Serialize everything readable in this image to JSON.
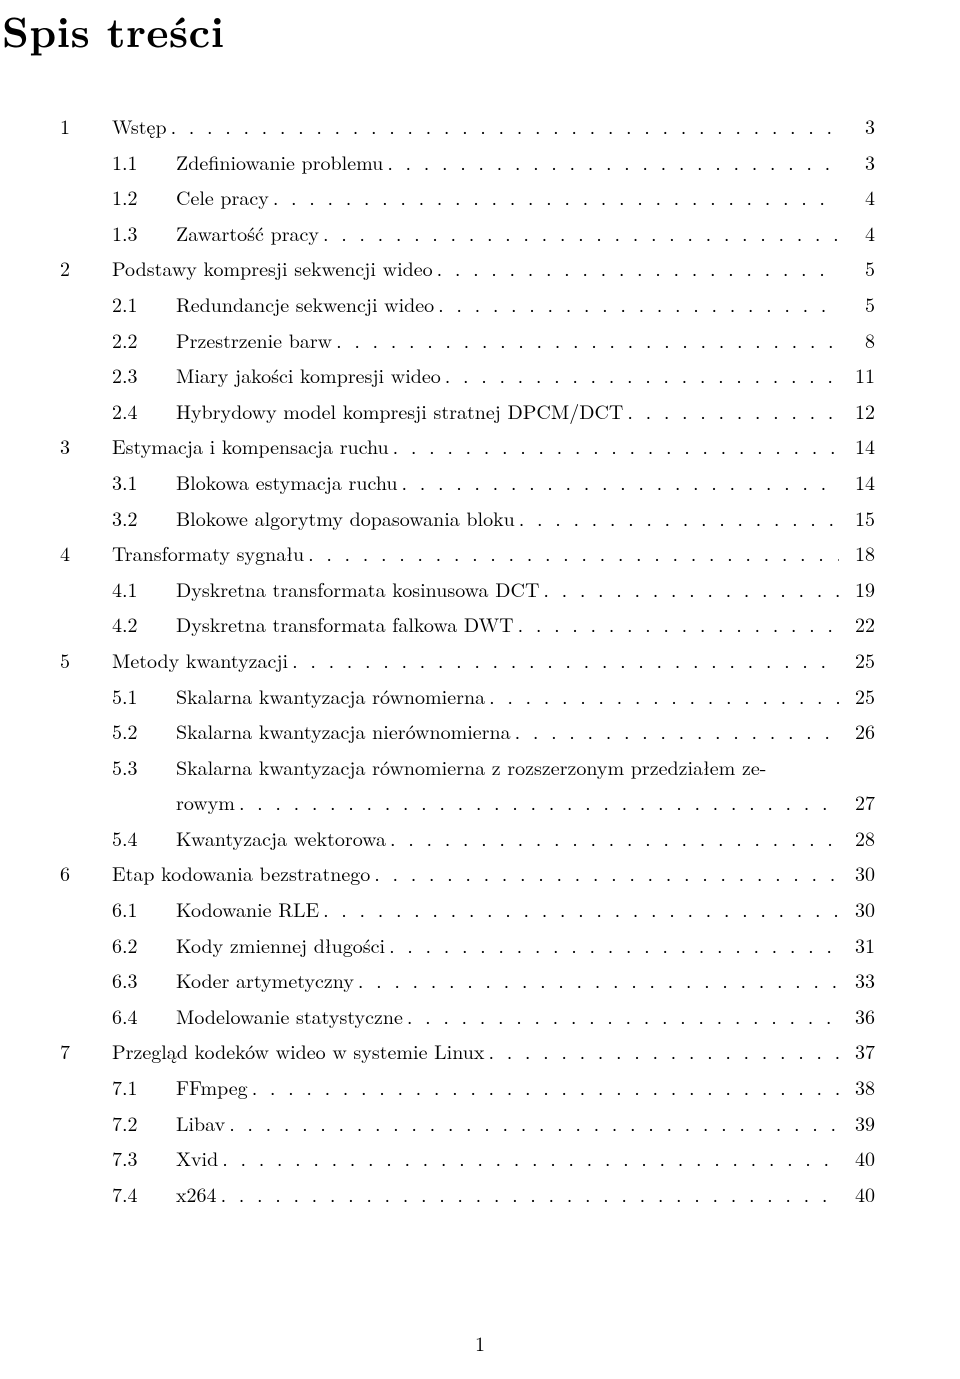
{
  "heading": "Spis treści",
  "page_number": "1",
  "entries": [
    {
      "type": "chap",
      "num": "1",
      "title": "Wstęp",
      "page": "3"
    },
    {
      "type": "sect",
      "num": "1.1",
      "title": "Zdefiniowanie problemu",
      "page": "3"
    },
    {
      "type": "sect",
      "num": "1.2",
      "title": "Cele pracy",
      "page": "4"
    },
    {
      "type": "sect",
      "num": "1.3",
      "title": "Zawartość pracy",
      "page": "4"
    },
    {
      "type": "chap",
      "num": "2",
      "title": "Podstawy kompresji sekwencji wideo",
      "page": "5"
    },
    {
      "type": "sect",
      "num": "2.1",
      "title": "Redundancje sekwencji wideo",
      "page": "5"
    },
    {
      "type": "sect",
      "num": "2.2",
      "title": "Przestrzenie barw",
      "page": "8"
    },
    {
      "type": "sect",
      "num": "2.3",
      "title": "Miary jakości kompresji wideo",
      "page": "11"
    },
    {
      "type": "sect",
      "num": "2.4",
      "title": "Hybrydowy model kompresji stratnej DPCM/DCT",
      "page": "12"
    },
    {
      "type": "chap",
      "num": "3",
      "title": "Estymacja i kompensacja ruchu",
      "page": "14"
    },
    {
      "type": "sect",
      "num": "3.1",
      "title": "Blokowa estymacja ruchu",
      "page": "14"
    },
    {
      "type": "sect",
      "num": "3.2",
      "title": "Blokowe algorytmy dopasowania bloku",
      "page": "15"
    },
    {
      "type": "chap",
      "num": "4",
      "title": "Transformaty sygnału",
      "page": "18"
    },
    {
      "type": "sect",
      "num": "4.1",
      "title": "Dyskretna transformata kosinusowa DCT",
      "page": "19"
    },
    {
      "type": "sect",
      "num": "4.2",
      "title": "Dyskretna transformata falkowa DWT",
      "page": "22"
    },
    {
      "type": "chap",
      "num": "5",
      "title": "Metody kwantyzacji",
      "page": "25"
    },
    {
      "type": "sect",
      "num": "5.1",
      "title": "Skalarna kwantyzacja równomierna",
      "page": "25"
    },
    {
      "type": "sect",
      "num": "5.2",
      "title": "Skalarna kwantyzacja nierównomierna",
      "page": "26"
    },
    {
      "type": "sect",
      "num": "5.3",
      "title": "Skalarna kwantyzacja równomierna z rozszerzonym przedziałem ze-",
      "page": "",
      "noleaders": true
    },
    {
      "type": "cont",
      "num": "",
      "title": "rowym",
      "page": "27"
    },
    {
      "type": "sect",
      "num": "5.4",
      "title": "Kwantyzacja wektorowa",
      "page": "28"
    },
    {
      "type": "chap",
      "num": "6",
      "title": "Etap kodowania bezstratnego",
      "page": "30"
    },
    {
      "type": "sect",
      "num": "6.1",
      "title": "Kodowanie RLE",
      "page": "30"
    },
    {
      "type": "sect",
      "num": "6.2",
      "title": "Kody zmiennej długości",
      "page": "31"
    },
    {
      "type": "sect",
      "num": "6.3",
      "title": "Koder artymetyczny",
      "page": "33"
    },
    {
      "type": "sect",
      "num": "6.4",
      "title": "Modelowanie statystyczne",
      "page": "36"
    },
    {
      "type": "chap",
      "num": "7",
      "title": "Przegląd kodeków wideo w systemie Linux",
      "page": "37"
    },
    {
      "type": "sect",
      "num": "7.1",
      "title": "FFmpeg",
      "page": "38"
    },
    {
      "type": "sect",
      "num": "7.2",
      "title": "Libav",
      "page": "39"
    },
    {
      "type": "sect",
      "num": "7.3",
      "title": "Xvid",
      "page": "40"
    },
    {
      "type": "sect",
      "num": "7.4",
      "title": "x264",
      "page": "40"
    }
  ]
}
